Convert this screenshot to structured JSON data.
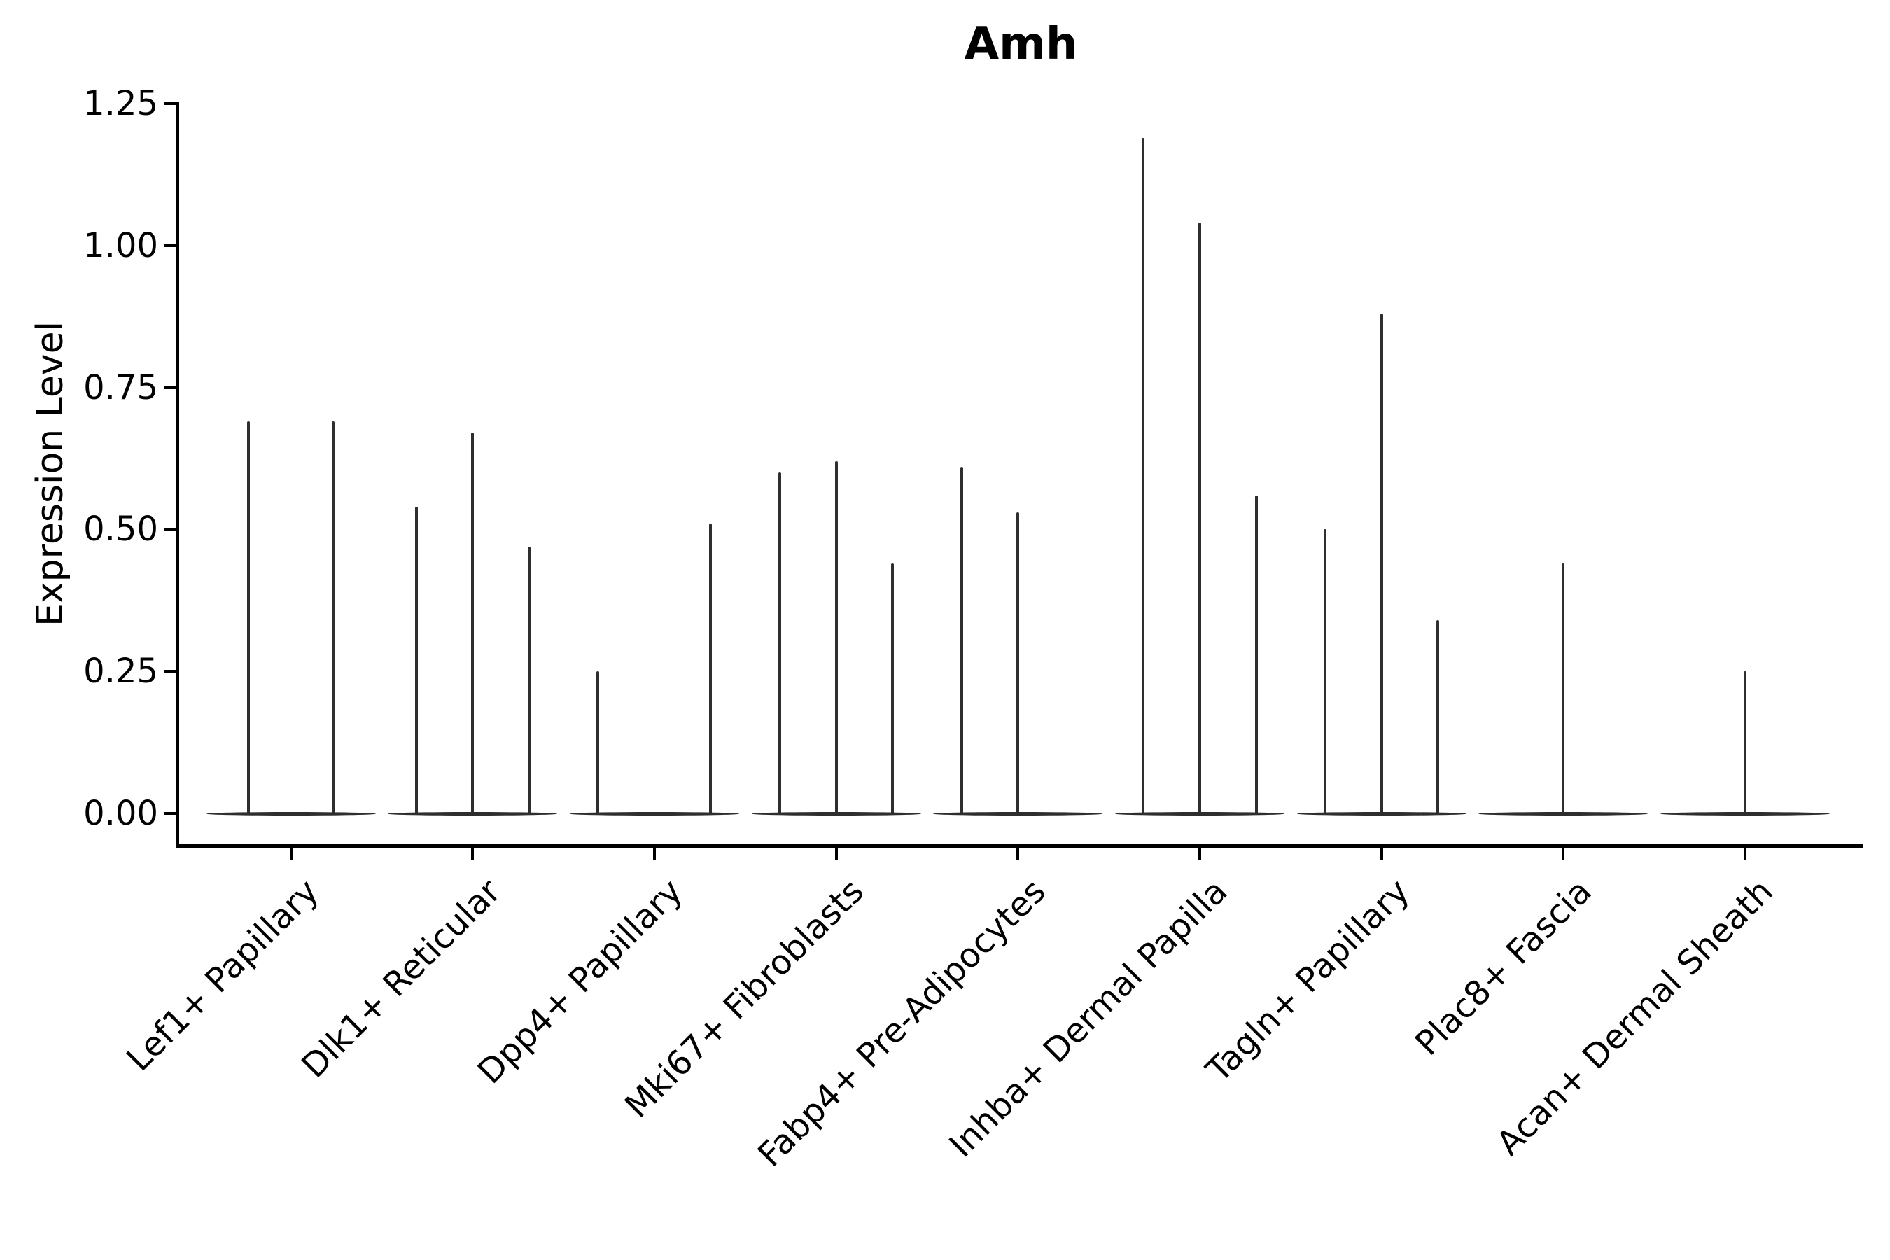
{
  "figure": {
    "background": "#ffffff"
  },
  "chart_data": {
    "type": "violin",
    "title": "Amh",
    "ylabel": "Expression Level",
    "xlabel": "",
    "ylim": [
      0,
      1.25
    ],
    "grid": false,
    "legend": "none",
    "style": {
      "violin_line_color": "#2e2e2e",
      "axis_color": "#000000",
      "text_color": "#000000"
    },
    "yticks": [
      {
        "value": 0.0,
        "label": "0.00"
      },
      {
        "value": 0.25,
        "label": "0.25"
      },
      {
        "value": 0.5,
        "label": "0.50"
      },
      {
        "value": 0.75,
        "label": "0.75"
      },
      {
        "value": 1.0,
        "label": "1.00"
      },
      {
        "value": 1.25,
        "label": "1.25"
      }
    ],
    "categories": [
      "Lef1+ Papillary",
      "Dlk1+ Reticular",
      "Dpp4+ Papillary",
      "Mki67+ Fibroblasts",
      "Fabp4+ Pre-Adipocytes",
      "Inhba+ Dermal Papilla",
      "Tagln+ Papillary",
      "Plac8+ Fascia",
      "Acan+ Dermal Sheath"
    ],
    "groups": [
      {
        "category": "Lef1+ Papillary",
        "violins": [
          {
            "offset": -0.25,
            "max": 0.69
          },
          {
            "offset": 0.25,
            "max": 0.69
          }
        ]
      },
      {
        "category": "Dlk1+ Reticular",
        "violins": [
          {
            "offset": -0.333,
            "max": 0.54
          },
          {
            "offset": 0,
            "max": 0.67
          },
          {
            "offset": 0.333,
            "max": 0.47
          }
        ]
      },
      {
        "category": "Dpp4+ Papillary",
        "violins": [
          {
            "offset": -0.333,
            "max": 0.25
          },
          {
            "offset": 0.333,
            "max": 0.51
          }
        ]
      },
      {
        "category": "Mki67+ Fibroblasts",
        "violins": [
          {
            "offset": -0.333,
            "max": 0.6
          },
          {
            "offset": 0,
            "max": 0.62
          },
          {
            "offset": 0.333,
            "max": 0.44
          }
        ]
      },
      {
        "category": "Fabp4+ Pre-Adipocytes",
        "violins": [
          {
            "offset": -0.333,
            "max": 0.61
          },
          {
            "offset": 0,
            "max": 0.53
          }
        ]
      },
      {
        "category": "Inhba+ Dermal Papilla",
        "violins": [
          {
            "offset": -0.333,
            "max": 1.19
          },
          {
            "offset": 0,
            "max": 1.04
          },
          {
            "offset": 0.333,
            "max": 0.56
          }
        ]
      },
      {
        "category": "Tagln+ Papillary",
        "violins": [
          {
            "offset": -0.333,
            "max": 0.5
          },
          {
            "offset": 0,
            "max": 0.88
          },
          {
            "offset": 0.333,
            "max": 0.34
          }
        ]
      },
      {
        "category": "Plac8+ Fascia",
        "violins": [
          {
            "offset": 0,
            "max": 0.44
          }
        ]
      },
      {
        "category": "Acan+ Dermal Sheath",
        "violins": [
          {
            "offset": 0,
            "max": 0.25
          }
        ]
      }
    ]
  }
}
